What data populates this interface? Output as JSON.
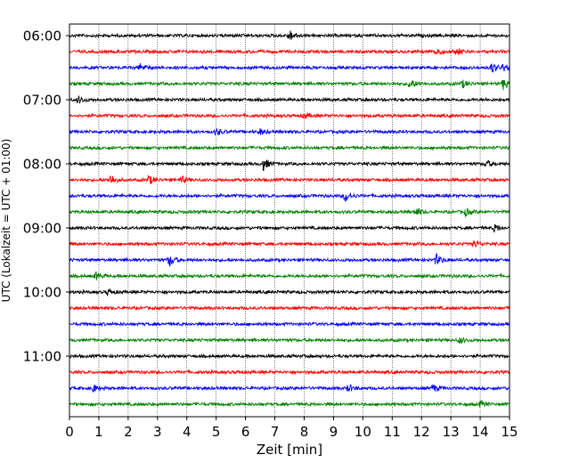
{
  "chart_data": {
    "type": "line",
    "title": "",
    "xlabel": "Zeit  [min]",
    "ylabel": "UTC (Lokalzeit = UTC + 01:00)",
    "xlim": [
      0,
      15
    ],
    "x_ticks": [
      0,
      1,
      2,
      3,
      4,
      5,
      6,
      7,
      8,
      9,
      10,
      11,
      12,
      13,
      14,
      15
    ],
    "x_grid": true,
    "y_tick_labels": [
      "06:00",
      "07:00",
      "08:00",
      "09:00",
      "10:00",
      "11:00"
    ],
    "trace_start": "06:00",
    "trace_interval_min": 15,
    "trace_count": 24,
    "color_cycle": [
      "#000000",
      "#ff0000",
      "#0000ff",
      "#008000"
    ],
    "events": [
      {
        "trace": 0,
        "minute": 7.5,
        "amp": 6
      },
      {
        "trace": 1,
        "minute": 12.5,
        "amp": 5
      },
      {
        "trace": 1,
        "minute": 13.2,
        "amp": 4
      },
      {
        "trace": 2,
        "minute": 2.4,
        "amp": 4
      },
      {
        "trace": 2,
        "minute": 14.4,
        "amp": 6
      },
      {
        "trace": 2,
        "minute": 14.8,
        "amp": 4
      },
      {
        "trace": 3,
        "minute": 11.6,
        "amp": 6
      },
      {
        "trace": 3,
        "minute": 13.4,
        "amp": 4
      },
      {
        "trace": 3,
        "minute": 14.8,
        "amp": 7
      },
      {
        "trace": 4,
        "minute": 0.3,
        "amp": 4
      },
      {
        "trace": 5,
        "minute": 8.0,
        "amp": 3
      },
      {
        "trace": 6,
        "minute": 5.0,
        "amp": 4
      },
      {
        "trace": 6,
        "minute": 6.5,
        "amp": 3
      },
      {
        "trace": 8,
        "minute": 6.6,
        "amp": 7
      },
      {
        "trace": 8,
        "minute": 14.2,
        "amp": 4
      },
      {
        "trace": 9,
        "minute": 1.4,
        "amp": 6
      },
      {
        "trace": 9,
        "minute": 2.7,
        "amp": 5
      },
      {
        "trace": 9,
        "minute": 3.8,
        "amp": 4
      },
      {
        "trace": 10,
        "minute": 9.4,
        "amp": 6
      },
      {
        "trace": 11,
        "minute": 11.8,
        "amp": 5
      },
      {
        "trace": 11,
        "minute": 13.5,
        "amp": 4
      },
      {
        "trace": 12,
        "minute": 14.5,
        "amp": 4
      },
      {
        "trace": 13,
        "minute": 13.8,
        "amp": 4
      },
      {
        "trace": 14,
        "minute": 3.4,
        "amp": 7
      },
      {
        "trace": 14,
        "minute": 12.5,
        "amp": 6
      },
      {
        "trace": 15,
        "minute": 0.9,
        "amp": 4
      },
      {
        "trace": 16,
        "minute": 1.3,
        "amp": 3
      },
      {
        "trace": 19,
        "minute": 13.3,
        "amp": 3
      },
      {
        "trace": 22,
        "minute": 0.8,
        "amp": 4
      },
      {
        "trace": 22,
        "minute": 9.5,
        "amp": 4
      },
      {
        "trace": 22,
        "minute": 12.4,
        "amp": 4
      },
      {
        "trace": 23,
        "minute": 14.0,
        "amp": 3
      }
    ]
  }
}
